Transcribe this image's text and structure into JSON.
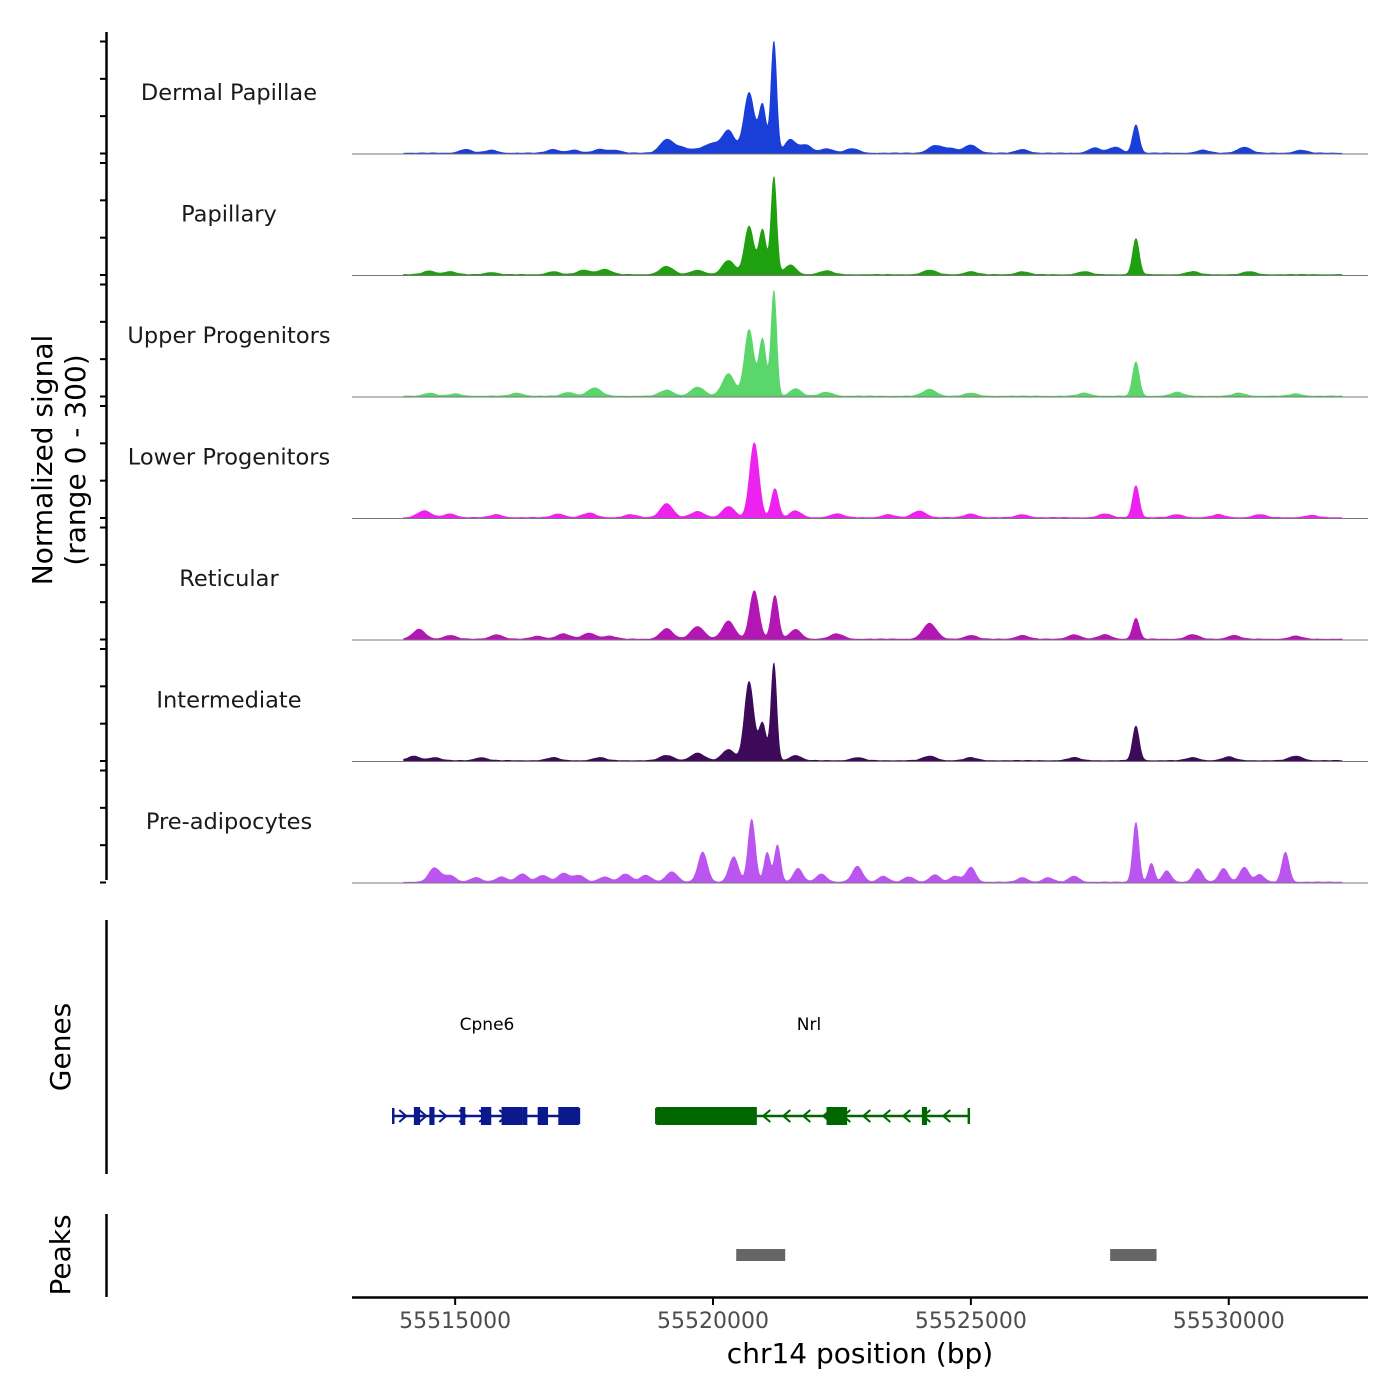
{
  "chart_data": {
    "type": "area",
    "title": "",
    "ylabel_lines": [
      "Normalized signal",
      "(range 0 - 300)"
    ],
    "y_range": [
      0,
      300
    ],
    "xlabel": "chr14 position (bp)",
    "xlim": [
      55513000,
      55532700
    ],
    "x_ticks": [
      55515000,
      55520000,
      55525000,
      55530000
    ],
    "x_tick_labels": [
      "55515000",
      "55520000",
      "55525000",
      "55530000"
    ],
    "signal_range_bp": [
      55514000,
      55532200
    ],
    "tracks": [
      {
        "name": "Dermal Papillae",
        "color": "#1a3fd8",
        "peaks": [
          [
            55515200,
            10,
            120
          ],
          [
            55515700,
            8,
            120
          ],
          [
            55516900,
            10,
            120
          ],
          [
            55517300,
            8,
            120
          ],
          [
            55517800,
            10,
            120
          ],
          [
            55518100,
            8,
            120
          ],
          [
            55519100,
            36,
            130
          ],
          [
            55519400,
            14,
            140
          ],
          [
            55519750,
            10,
            130
          ],
          [
            55520000,
            24,
            130
          ],
          [
            55520300,
            60,
            120
          ],
          [
            55520700,
            162,
            100
          ],
          [
            55520960,
            128,
            70
          ],
          [
            55521180,
            300,
            55
          ],
          [
            55521500,
            36,
            110
          ],
          [
            55521800,
            22,
            110
          ],
          [
            55522200,
            12,
            130
          ],
          [
            55522700,
            12,
            130
          ],
          [
            55524300,
            20,
            130
          ],
          [
            55524600,
            12,
            130
          ],
          [
            55525000,
            22,
            130
          ],
          [
            55526000,
            10,
            120
          ],
          [
            55527400,
            14,
            120
          ],
          [
            55527800,
            16,
            120
          ],
          [
            55528200,
            76,
            65
          ],
          [
            55529500,
            8,
            120
          ],
          [
            55530300,
            16,
            130
          ],
          [
            55531400,
            8,
            120
          ]
        ]
      },
      {
        "name": "Papillary",
        "color": "#1ea00f",
        "peaks": [
          [
            55514500,
            10,
            120
          ],
          [
            55514900,
            8,
            120
          ],
          [
            55515700,
            6,
            120
          ],
          [
            55516900,
            8,
            120
          ],
          [
            55517500,
            12,
            130
          ],
          [
            55517900,
            14,
            130
          ],
          [
            55519100,
            22,
            130
          ],
          [
            55519700,
            12,
            130
          ],
          [
            55520300,
            38,
            120
          ],
          [
            55520700,
            130,
            90
          ],
          [
            55520960,
            120,
            70
          ],
          [
            55521180,
            262,
            55
          ],
          [
            55521500,
            26,
            110
          ],
          [
            55522200,
            10,
            130
          ],
          [
            55524200,
            12,
            130
          ],
          [
            55525000,
            8,
            120
          ],
          [
            55526000,
            8,
            120
          ],
          [
            55527200,
            8,
            120
          ],
          [
            55528200,
            96,
            65
          ],
          [
            55529300,
            8,
            120
          ],
          [
            55530400,
            8,
            120
          ]
        ]
      },
      {
        "name": "Upper Progenitors",
        "color": "#5ad66a",
        "peaks": [
          [
            55514500,
            8,
            120
          ],
          [
            55515000,
            6,
            120
          ],
          [
            55516200,
            8,
            120
          ],
          [
            55517200,
            10,
            120
          ],
          [
            55517700,
            22,
            130
          ],
          [
            55519100,
            16,
            130
          ],
          [
            55519700,
            24,
            130
          ],
          [
            55520300,
            60,
            120
          ],
          [
            55520700,
            178,
            90
          ],
          [
            55520960,
            152,
            70
          ],
          [
            55521180,
            282,
            55
          ],
          [
            55521600,
            20,
            110
          ],
          [
            55522200,
            10,
            130
          ],
          [
            55524200,
            18,
            130
          ],
          [
            55525000,
            8,
            120
          ],
          [
            55527200,
            8,
            120
          ],
          [
            55528200,
            92,
            65
          ],
          [
            55529000,
            10,
            120
          ],
          [
            55530200,
            8,
            120
          ],
          [
            55531300,
            6,
            120
          ]
        ]
      },
      {
        "name": "Lower Progenitors",
        "color": "#ee22ee",
        "peaks": [
          [
            55514400,
            18,
            130
          ],
          [
            55514900,
            10,
            120
          ],
          [
            55515800,
            8,
            120
          ],
          [
            55517000,
            10,
            120
          ],
          [
            55517600,
            12,
            130
          ],
          [
            55518400,
            8,
            120
          ],
          [
            55519100,
            38,
            120
          ],
          [
            55519700,
            16,
            130
          ],
          [
            55520300,
            30,
            120
          ],
          [
            55520800,
            200,
            90
          ],
          [
            55521200,
            78,
            70
          ],
          [
            55521600,
            18,
            110
          ],
          [
            55522400,
            10,
            130
          ],
          [
            55523400,
            8,
            120
          ],
          [
            55524000,
            18,
            130
          ],
          [
            55525000,
            10,
            120
          ],
          [
            55526000,
            8,
            120
          ],
          [
            55527600,
            10,
            120
          ],
          [
            55528200,
            86,
            65
          ],
          [
            55529000,
            8,
            120
          ],
          [
            55529800,
            8,
            120
          ],
          [
            55530600,
            8,
            120
          ],
          [
            55531600,
            6,
            120
          ]
        ]
      },
      {
        "name": "Reticular",
        "color": "#b317b3",
        "peaks": [
          [
            55514300,
            26,
            120
          ],
          [
            55514900,
            10,
            120
          ],
          [
            55515800,
            12,
            120
          ],
          [
            55516600,
            8,
            120
          ],
          [
            55517100,
            14,
            130
          ],
          [
            55517600,
            16,
            130
          ],
          [
            55518000,
            8,
            120
          ],
          [
            55519100,
            28,
            120
          ],
          [
            55519700,
            34,
            130
          ],
          [
            55520300,
            48,
            120
          ],
          [
            55520800,
            130,
            90
          ],
          [
            55521200,
            116,
            70
          ],
          [
            55521600,
            26,
            110
          ],
          [
            55522400,
            14,
            130
          ],
          [
            55524200,
            42,
            130
          ],
          [
            55525000,
            10,
            120
          ],
          [
            55526000,
            10,
            120
          ],
          [
            55527000,
            12,
            120
          ],
          [
            55527600,
            12,
            120
          ],
          [
            55528200,
            56,
            65
          ],
          [
            55529300,
            12,
            120
          ],
          [
            55530100,
            10,
            120
          ],
          [
            55531300,
            8,
            120
          ]
        ]
      },
      {
        "name": "Intermediate",
        "color": "#3d0a5a",
        "peaks": [
          [
            55514200,
            12,
            120
          ],
          [
            55514600,
            8,
            120
          ],
          [
            55515500,
            8,
            120
          ],
          [
            55516900,
            8,
            120
          ],
          [
            55517800,
            8,
            120
          ],
          [
            55519100,
            14,
            130
          ],
          [
            55519700,
            20,
            130
          ],
          [
            55520300,
            30,
            120
          ],
          [
            55520700,
            212,
            90
          ],
          [
            55520960,
            100,
            70
          ],
          [
            55521180,
            262,
            55
          ],
          [
            55521600,
            14,
            110
          ],
          [
            55522800,
            8,
            120
          ],
          [
            55524200,
            12,
            130
          ],
          [
            55525000,
            8,
            120
          ],
          [
            55527000,
            8,
            120
          ],
          [
            55528200,
            92,
            65
          ],
          [
            55529300,
            8,
            120
          ],
          [
            55530000,
            10,
            120
          ],
          [
            55531300,
            12,
            130
          ]
        ]
      },
      {
        "name": "Pre-adipocytes",
        "color": "#bb55f0",
        "peaks": [
          [
            55514600,
            38,
            110
          ],
          [
            55514900,
            18,
            110
          ],
          [
            55515400,
            12,
            110
          ],
          [
            55515900,
            14,
            110
          ],
          [
            55516300,
            22,
            110
          ],
          [
            55516700,
            18,
            110
          ],
          [
            55517100,
            24,
            110
          ],
          [
            55517400,
            18,
            110
          ],
          [
            55517900,
            14,
            110
          ],
          [
            55518300,
            22,
            110
          ],
          [
            55518700,
            18,
            110
          ],
          [
            55519200,
            28,
            110
          ],
          [
            55519800,
            80,
            90
          ],
          [
            55520400,
            68,
            90
          ],
          [
            55520750,
            168,
            70
          ],
          [
            55521050,
            80,
            60
          ],
          [
            55521250,
            100,
            60
          ],
          [
            55521650,
            36,
            90
          ],
          [
            55522100,
            22,
            100
          ],
          [
            55522800,
            42,
            100
          ],
          [
            55523300,
            16,
            100
          ],
          [
            55523800,
            14,
            100
          ],
          [
            55524300,
            20,
            100
          ],
          [
            55524700,
            16,
            100
          ],
          [
            55525000,
            40,
            90
          ],
          [
            55526000,
            12,
            100
          ],
          [
            55526500,
            12,
            100
          ],
          [
            55527000,
            16,
            100
          ],
          [
            55528200,
            160,
            60
          ],
          [
            55528500,
            50,
            60
          ],
          [
            55528800,
            30,
            80
          ],
          [
            55529400,
            36,
            90
          ],
          [
            55529900,
            36,
            90
          ],
          [
            55530300,
            40,
            90
          ],
          [
            55530600,
            20,
            90
          ],
          [
            55531100,
            80,
            70
          ]
        ]
      }
    ],
    "genes_label": "Genes",
    "genes": [
      {
        "name": "Cpne6",
        "color": "#0a1a8c",
        "strand": "+",
        "start": 55513800,
        "end": 55517400,
        "exons": [
          [
            55514200,
            55514320
          ],
          [
            55514500,
            55514600
          ],
          [
            55515100,
            55515150
          ],
          [
            55515500,
            55515700
          ],
          [
            55515900,
            55516300
          ],
          [
            55516300,
            55516400
          ],
          [
            55516600,
            55516800
          ],
          [
            55517000,
            55517400
          ]
        ]
      },
      {
        "name": "Nrl",
        "color": "#006600",
        "strand": "-",
        "start": 55518900,
        "end": 55524960,
        "exons": [
          [
            55518900,
            55520850
          ],
          [
            55522200,
            55522600
          ],
          [
            55524050,
            55524150
          ]
        ]
      }
    ],
    "peaks_label": "Peaks",
    "peak_regions": [
      [
        55520450,
        55521400
      ],
      [
        55527700,
        55528600
      ]
    ]
  }
}
